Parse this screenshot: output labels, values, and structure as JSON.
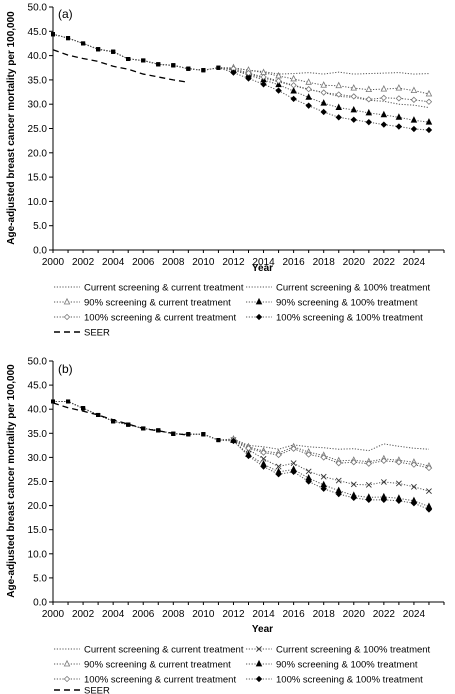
{
  "chart_data": [
    {
      "type": "line",
      "panel_label": "(a)",
      "xlabel": "Year",
      "ylabel": "Age-adjusted breast cancer mortality per 100,000",
      "xlim": [
        2000,
        2026
      ],
      "ylim": [
        0,
        50
      ],
      "x_ticks": [
        "2000",
        "2002",
        "2004",
        "2006",
        "2008",
        "2010",
        "2012",
        "2014",
        "2016",
        "2018",
        "2020",
        "2022",
        "2024"
      ],
      "y_ticks": [
        "0.0",
        "5.0",
        "10.0",
        "15.0",
        "20.0",
        "25.0",
        "30.0",
        "35.0",
        "40.0",
        "45.0",
        "50.0"
      ],
      "grid": false,
      "legend_position": "bottom",
      "series": [
        {
          "name": "Current screening & current treatment",
          "style": "dotted",
          "marker": "none",
          "x": [
            2000,
            2001,
            2002,
            2003,
            2004,
            2005,
            2006,
            2007,
            2008,
            2009,
            2010,
            2011,
            2012,
            2013,
            2014,
            2015,
            2016,
            2017,
            2018,
            2019,
            2020,
            2021,
            2022,
            2023,
            2024,
            2025
          ],
          "y": [
            44.4,
            43.6,
            42.5,
            41.3,
            40.8,
            39.3,
            39.0,
            38.2,
            38.0,
            37.3,
            37.0,
            37.5,
            37.4,
            37.0,
            36.7,
            36.2,
            36.3,
            36.5,
            36.2,
            36.6,
            36.2,
            36.3,
            36.4,
            36.5,
            36.2,
            36.3
          ]
        },
        {
          "name": "Current screening & 100% treatment",
          "style": "dotted",
          "marker": "none",
          "x": [
            2000,
            2001,
            2002,
            2003,
            2004,
            2005,
            2006,
            2007,
            2008,
            2009,
            2010,
            2011,
            2012,
            2013,
            2014,
            2015,
            2016,
            2017,
            2018,
            2019,
            2020,
            2021,
            2022,
            2023,
            2024,
            2025
          ],
          "y": [
            44.4,
            43.6,
            42.5,
            41.3,
            40.8,
            39.3,
            39.0,
            38.2,
            38.0,
            37.3,
            37.0,
            37.5,
            37.1,
            36.2,
            35.4,
            34.6,
            33.8,
            33.0,
            32.4,
            31.6,
            31.4,
            30.8,
            30.6,
            30.0,
            29.8,
            29.3
          ]
        },
        {
          "name": "90% screening & current treatment",
          "style": "dotted",
          "marker": "triangle-open",
          "x": [
            2000,
            2001,
            2002,
            2003,
            2004,
            2005,
            2006,
            2007,
            2008,
            2009,
            2010,
            2011,
            2012,
            2013,
            2014,
            2015,
            2016,
            2017,
            2018,
            2019,
            2020,
            2021,
            2022,
            2023,
            2024,
            2025
          ],
          "y": [
            44.4,
            43.6,
            42.5,
            41.3,
            40.8,
            39.3,
            39.0,
            38.2,
            38.0,
            37.3,
            37.0,
            37.5,
            37.5,
            37.0,
            36.5,
            35.8,
            35.2,
            34.5,
            33.9,
            33.8,
            33.3,
            33.0,
            33.1,
            33.3,
            32.8,
            32.1
          ]
        },
        {
          "name": "90% screening & 100% treatment",
          "style": "dotted",
          "marker": "triangle-filled",
          "x": [
            2000,
            2001,
            2002,
            2003,
            2004,
            2005,
            2006,
            2007,
            2008,
            2009,
            2010,
            2011,
            2012,
            2013,
            2014,
            2015,
            2016,
            2017,
            2018,
            2019,
            2020,
            2021,
            2022,
            2023,
            2024,
            2025
          ],
          "y": [
            44.4,
            43.6,
            42.5,
            41.3,
            40.8,
            39.3,
            39.0,
            38.2,
            38.0,
            37.3,
            37.0,
            37.5,
            37.0,
            36.0,
            35.0,
            34.0,
            32.7,
            31.4,
            30.2,
            29.3,
            28.8,
            28.2,
            27.8,
            27.3,
            26.7,
            26.3
          ]
        },
        {
          "name": "100% screening & current treatment",
          "style": "dotted",
          "marker": "diamond-open",
          "x": [
            2000,
            2001,
            2002,
            2003,
            2004,
            2005,
            2006,
            2007,
            2008,
            2009,
            2010,
            2011,
            2012,
            2013,
            2014,
            2015,
            2016,
            2017,
            2018,
            2019,
            2020,
            2021,
            2022,
            2023,
            2024,
            2025
          ],
          "y": [
            44.4,
            43.6,
            42.5,
            41.3,
            40.8,
            39.3,
            39.0,
            38.2,
            38.0,
            37.3,
            37.0,
            37.5,
            37.3,
            36.4,
            35.6,
            34.8,
            33.9,
            33.1,
            32.4,
            32.0,
            31.6,
            31.0,
            31.3,
            31.2,
            30.9,
            30.5
          ]
        },
        {
          "name": "100% screening & 100% treatment",
          "style": "dotted",
          "marker": "diamond-filled",
          "x": [
            2000,
            2001,
            2002,
            2003,
            2004,
            2005,
            2006,
            2007,
            2008,
            2009,
            2010,
            2011,
            2012,
            2013,
            2014,
            2015,
            2016,
            2017,
            2018,
            2019,
            2020,
            2021,
            2022,
            2023,
            2024,
            2025
          ],
          "y": [
            44.4,
            43.6,
            42.5,
            41.3,
            40.8,
            39.3,
            39.0,
            38.2,
            38.0,
            37.3,
            37.0,
            37.5,
            36.5,
            35.3,
            34.1,
            32.8,
            31.1,
            29.7,
            28.4,
            27.3,
            26.8,
            26.3,
            25.8,
            25.4,
            24.9,
            24.7
          ]
        },
        {
          "name": "SEER",
          "style": "dashed",
          "marker": "none",
          "x": [
            2000,
            2001,
            2002,
            2003,
            2004,
            2005,
            2006,
            2007,
            2008,
            2009
          ],
          "y": [
            41.2,
            40.1,
            39.4,
            38.8,
            37.8,
            37.2,
            36.2,
            35.6,
            35.0,
            34.5
          ]
        }
      ]
    },
    {
      "type": "line",
      "panel_label": "(b)",
      "xlabel": "Year",
      "ylabel": "Age-adjusted breast cancer mortality per 100,000",
      "xlim": [
        2000,
        2026
      ],
      "ylim": [
        0,
        50
      ],
      "x_ticks": [
        "2000",
        "2002",
        "2004",
        "2006",
        "2008",
        "2010",
        "2012",
        "2014",
        "2016",
        "2018",
        "2020",
        "2022",
        "2024"
      ],
      "y_ticks": [
        "0.0",
        "5.0",
        "10.0",
        "15.0",
        "20.0",
        "25.0",
        "30.0",
        "35.0",
        "40.0",
        "45.0",
        "50.0"
      ],
      "grid": false,
      "legend_position": "bottom",
      "series": [
        {
          "name": "Current screening & current treatment",
          "style": "dotted",
          "marker": "none",
          "x": [
            2000,
            2001,
            2002,
            2003,
            2004,
            2005,
            2006,
            2007,
            2008,
            2009,
            2010,
            2011,
            2012,
            2013,
            2014,
            2015,
            2016,
            2017,
            2018,
            2019,
            2020,
            2021,
            2022,
            2023,
            2024,
            2025
          ],
          "y": [
            41.6,
            41.6,
            40.2,
            38.8,
            37.5,
            36.8,
            36.0,
            35.6,
            34.9,
            34.8,
            34.8,
            33.6,
            33.8,
            32.5,
            32.2,
            31.7,
            32.6,
            32.2,
            32.0,
            31.7,
            31.8,
            31.4,
            32.8,
            32.3,
            31.9,
            31.7
          ]
        },
        {
          "name": "Current screening & 100% treatment",
          "style": "dotted",
          "marker": "cross",
          "x": [
            2000,
            2001,
            2002,
            2003,
            2004,
            2005,
            2006,
            2007,
            2008,
            2009,
            2010,
            2011,
            2012,
            2013,
            2014,
            2015,
            2016,
            2017,
            2018,
            2019,
            2020,
            2021,
            2022,
            2023,
            2024,
            2025
          ],
          "y": [
            41.6,
            41.6,
            40.2,
            38.8,
            37.5,
            36.8,
            36.0,
            35.6,
            34.9,
            34.8,
            34.8,
            33.6,
            33.6,
            31.6,
            29.7,
            28.1,
            28.8,
            27.1,
            26.0,
            25.2,
            24.4,
            24.3,
            24.9,
            24.6,
            23.9,
            23.0
          ]
        },
        {
          "name": "90% screening & current treatment",
          "style": "dotted",
          "marker": "triangle-open",
          "x": [
            2000,
            2001,
            2002,
            2003,
            2004,
            2005,
            2006,
            2007,
            2008,
            2009,
            2010,
            2011,
            2012,
            2013,
            2014,
            2015,
            2016,
            2017,
            2018,
            2019,
            2020,
            2021,
            2022,
            2023,
            2024,
            2025
          ],
          "y": [
            41.6,
            41.6,
            40.2,
            38.8,
            37.5,
            36.8,
            36.0,
            35.6,
            34.9,
            34.8,
            34.8,
            33.6,
            33.8,
            32.2,
            31.3,
            30.9,
            32.2,
            31.1,
            30.4,
            29.3,
            29.4,
            29.1,
            29.7,
            29.4,
            29.0,
            28.2
          ]
        },
        {
          "name": "90% screening & 100% treatment",
          "style": "dotted",
          "marker": "triangle-filled",
          "x": [
            2000,
            2001,
            2002,
            2003,
            2004,
            2005,
            2006,
            2007,
            2008,
            2009,
            2010,
            2011,
            2012,
            2013,
            2014,
            2015,
            2016,
            2017,
            2018,
            2019,
            2020,
            2021,
            2022,
            2023,
            2024,
            2025
          ],
          "y": [
            41.6,
            41.6,
            40.2,
            38.8,
            37.5,
            36.8,
            36.0,
            35.6,
            34.9,
            34.8,
            34.8,
            33.6,
            33.5,
            30.6,
            28.6,
            27.0,
            27.5,
            25.7,
            24.3,
            23.1,
            22.1,
            21.7,
            21.8,
            21.5,
            21.0,
            19.8
          ]
        },
        {
          "name": "100% screening & current treatment",
          "style": "dotted",
          "marker": "diamond-open",
          "x": [
            2000,
            2001,
            2002,
            2003,
            2004,
            2005,
            2006,
            2007,
            2008,
            2009,
            2010,
            2011,
            2012,
            2013,
            2014,
            2015,
            2016,
            2017,
            2018,
            2019,
            2020,
            2021,
            2022,
            2023,
            2024,
            2025
          ],
          "y": [
            41.6,
            41.6,
            40.2,
            38.8,
            37.5,
            36.8,
            36.0,
            35.6,
            34.9,
            34.8,
            34.8,
            33.6,
            33.7,
            31.9,
            31.0,
            30.5,
            31.8,
            30.6,
            30.0,
            28.8,
            29.0,
            28.7,
            29.3,
            29.0,
            28.5,
            27.8
          ]
        },
        {
          "name": "100% screening & 100% treatment",
          "style": "dotted",
          "marker": "diamond-filled",
          "x": [
            2000,
            2001,
            2002,
            2003,
            2004,
            2005,
            2006,
            2007,
            2008,
            2009,
            2010,
            2011,
            2012,
            2013,
            2014,
            2015,
            2016,
            2017,
            2018,
            2019,
            2020,
            2021,
            2022,
            2023,
            2024,
            2025
          ],
          "y": [
            41.6,
            41.6,
            40.2,
            38.8,
            37.5,
            36.8,
            36.0,
            35.6,
            34.9,
            34.8,
            34.8,
            33.6,
            33.4,
            30.3,
            28.1,
            26.5,
            27.0,
            25.0,
            23.5,
            22.4,
            21.6,
            21.2,
            21.2,
            21.0,
            20.5,
            19.2
          ]
        },
        {
          "name": "SEER",
          "style": "dashed",
          "marker": "none",
          "x": [
            2000,
            2001,
            2002,
            2003,
            2004,
            2005,
            2006,
            2007,
            2008,
            2009
          ],
          "y": [
            41.3,
            40.3,
            39.6,
            38.8,
            37.8,
            36.9,
            36.0,
            35.5,
            35.0,
            34.6
          ]
        }
      ]
    }
  ]
}
